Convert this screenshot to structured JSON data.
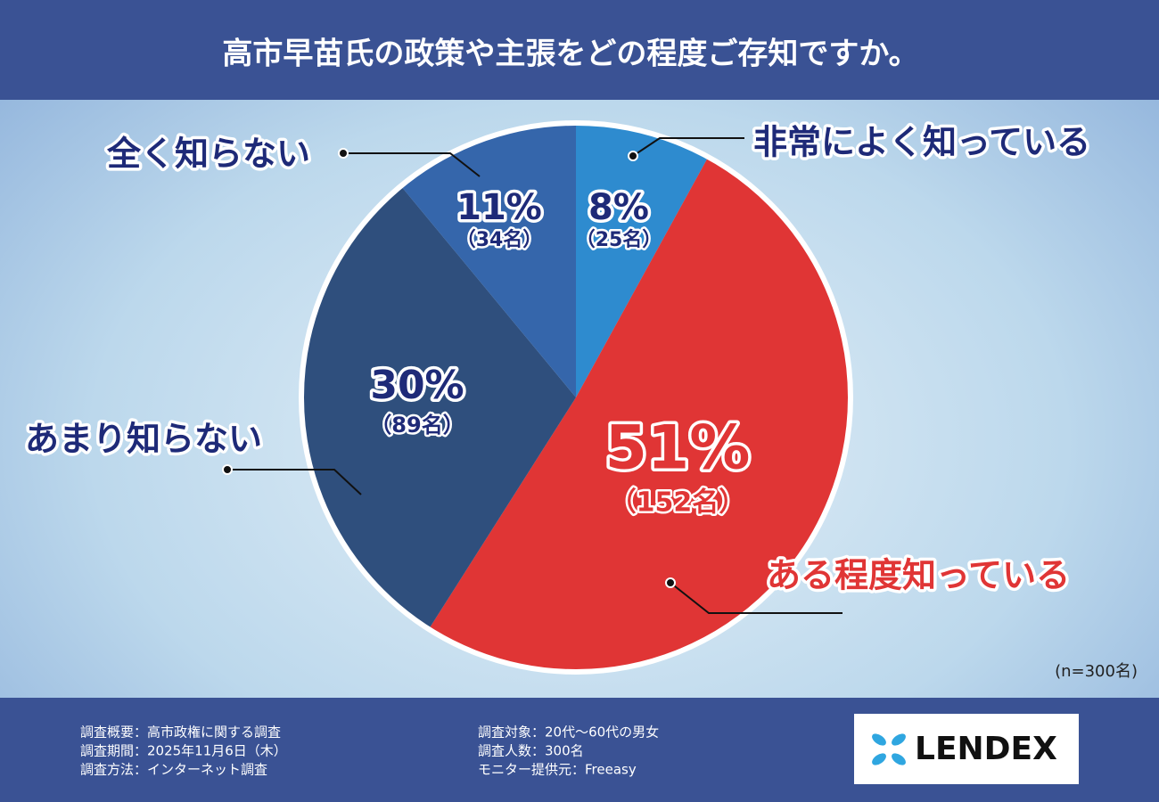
{
  "chart_data": {
    "type": "pie",
    "title": "高市早苗氏の政策や主張をどの程度ご存知ですか。",
    "categories": [
      "非常によく知っている",
      "ある程度知っている",
      "あまり知らない",
      "全く知らない"
    ],
    "values": [
      8,
      51,
      30,
      11
    ],
    "value_labels": [
      "8%",
      "51%",
      "30%",
      "11%"
    ],
    "count_labels": [
      "（25名）",
      "（152名）",
      "（89名）",
      "（34名）"
    ],
    "colors": [
      "#2e8bcf",
      "#e03535",
      "#2f4f7d",
      "#3566ab"
    ],
    "note": "(n=300名)"
  },
  "footer": {
    "left": [
      "調査概要：高市政権に関する調査",
      "調査期間：2025年11月6日（木）",
      "調査方法：インターネット調査"
    ],
    "right": [
      "調査対象：20代〜60代の男女",
      "調査人数：300名",
      "モニター提供元：Freeasy"
    ]
  },
  "logo": "LENDEX"
}
